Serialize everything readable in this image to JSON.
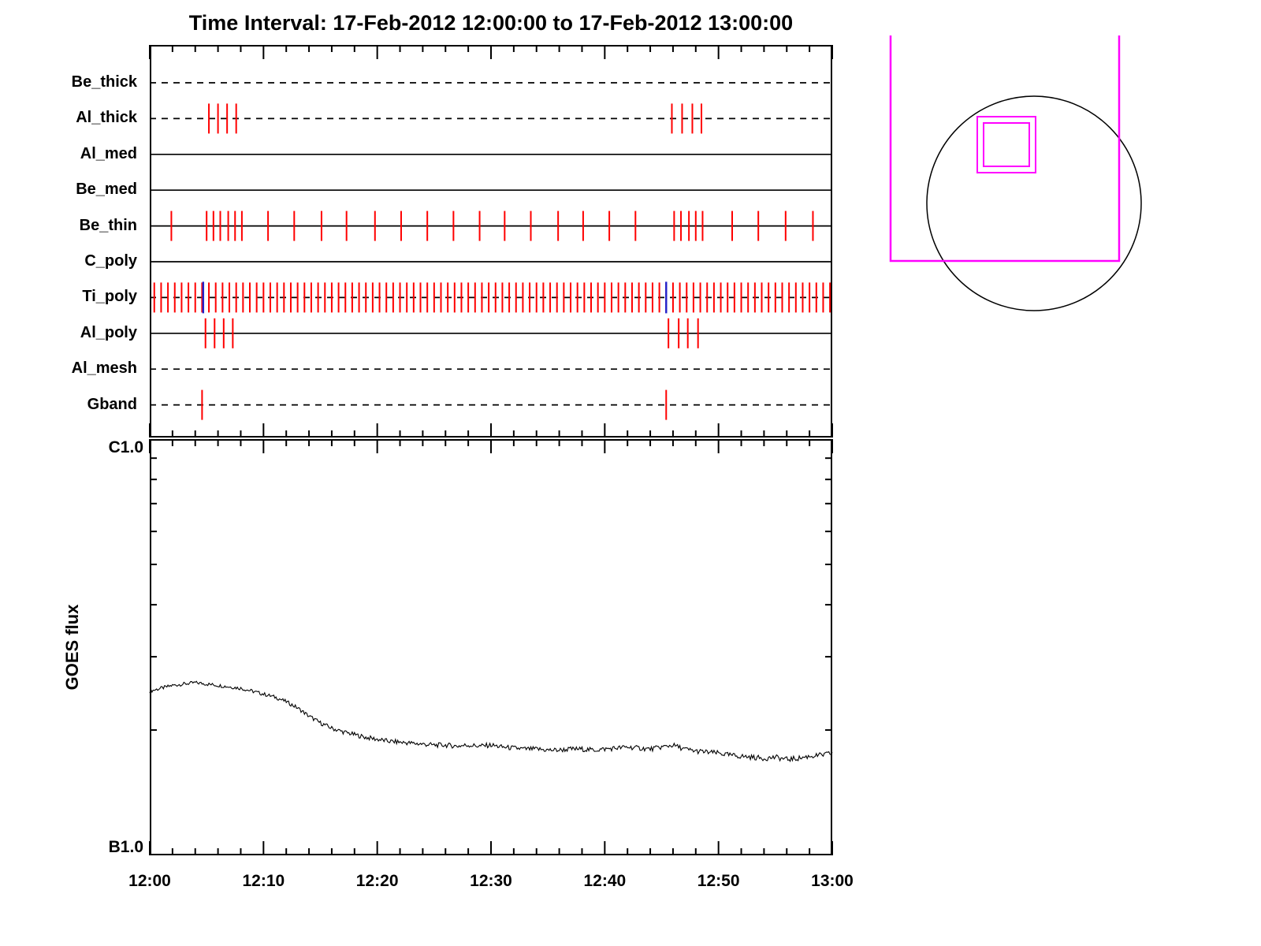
{
  "title": "Time Interval: 17-Feb-2012 12:00:00 to 17-Feb-2012 13:00:00",
  "colors": {
    "axis": "#000000",
    "exposure_tick": "#ff0000",
    "special_tick": "#2222cc",
    "fov": "#ff00ff",
    "background": "#ffffff"
  },
  "chart_data": [
    {
      "type": "timeline",
      "name": "xrt-filter-exposure-timeline",
      "x_minutes_range": [
        0,
        60
      ],
      "x_start_label": "12:00",
      "x_end_label": "13:00",
      "x_major_tick_minutes": 10,
      "x_minor_tick_minutes": 2,
      "rows": [
        {
          "label": "Be_thick",
          "line_style": "dashed",
          "ticks": []
        },
        {
          "label": "Al_thick",
          "line_style": "dashed",
          "ticks": [
            5.2,
            6.0,
            6.8,
            7.6,
            45.9,
            46.8,
            47.7,
            48.5
          ]
        },
        {
          "label": "Al_med",
          "line_style": "solid",
          "ticks": []
        },
        {
          "label": "Be_med",
          "line_style": "solid",
          "ticks": []
        },
        {
          "label": "Be_thin",
          "line_style": "solid",
          "ticks": [
            1.9,
            5.0,
            5.6,
            6.2,
            6.9,
            7.5,
            8.1,
            10.4,
            12.7,
            15.1,
            17.3,
            19.8,
            22.1,
            24.4,
            26.7,
            29.0,
            31.2,
            33.5,
            35.9,
            38.1,
            40.4,
            42.7,
            46.1,
            46.7,
            47.4,
            48.0,
            48.6,
            51.2,
            53.5,
            55.9,
            58.3
          ]
        },
        {
          "label": "C_poly",
          "line_style": "solid",
          "ticks": []
        },
        {
          "label": "Ti_poly",
          "line_style": "dashed",
          "ticks": [
            0.4,
            1.0,
            1.6,
            2.2,
            2.8,
            3.4,
            4.0,
            4.6,
            5.2,
            5.8,
            6.4,
            7.0,
            7.6,
            8.2,
            8.8,
            9.4,
            10.0,
            10.6,
            11.2,
            11.8,
            12.4,
            13.0,
            13.6,
            14.2,
            14.8,
            15.4,
            16.0,
            16.6,
            17.2,
            17.8,
            18.4,
            19.0,
            19.6,
            20.2,
            20.8,
            21.4,
            22.0,
            22.6,
            23.2,
            23.8,
            24.4,
            25.0,
            25.6,
            26.2,
            26.8,
            27.4,
            28.0,
            28.6,
            29.2,
            29.8,
            30.4,
            31.0,
            31.6,
            32.2,
            32.8,
            33.4,
            34.0,
            34.6,
            35.2,
            35.8,
            36.4,
            37.0,
            37.6,
            38.2,
            38.8,
            39.4,
            40.0,
            40.6,
            41.2,
            41.8,
            42.4,
            43.0,
            43.6,
            44.2,
            44.8,
            45.4,
            46.0,
            46.6,
            47.2,
            47.8,
            48.4,
            49.0,
            49.6,
            50.2,
            50.8,
            51.4,
            52.0,
            52.6,
            53.2,
            53.8,
            54.4,
            55.0,
            55.6,
            56.2,
            56.8,
            57.4,
            58.0,
            58.6,
            59.2,
            59.8
          ],
          "special_ticks": [
            4.7,
            45.4
          ]
        },
        {
          "label": "Al_poly",
          "line_style": "solid",
          "ticks": [
            4.9,
            5.7,
            6.5,
            7.3,
            45.6,
            46.5,
            47.3,
            48.2
          ]
        },
        {
          "label": "Al_mesh",
          "line_style": "dashed",
          "ticks": []
        },
        {
          "label": "Gband",
          "line_style": "dashed",
          "ticks": [
            4.6,
            45.4
          ]
        }
      ]
    },
    {
      "type": "line",
      "name": "goes-flux",
      "ylabel": "GOES flux",
      "yaxis": {
        "scale": "log",
        "top_label": "C1.0",
        "bottom_label": "B1.0",
        "minor_tick_values_b_units": [
          2,
          3,
          4,
          5,
          6,
          7,
          8,
          9
        ]
      },
      "x_tick_labels": [
        "12:00",
        "12:10",
        "12:20",
        "12:30",
        "12:40",
        "12:50",
        "13:00"
      ],
      "x_minutes": [
        0,
        1,
        2,
        3,
        4,
        5,
        6,
        7,
        8,
        9,
        10,
        11,
        12,
        13,
        14,
        15,
        16,
        17,
        18,
        19,
        20,
        21,
        22,
        23,
        24,
        25,
        26,
        27,
        28,
        29,
        30,
        31,
        32,
        33,
        34,
        35,
        36,
        37,
        38,
        39,
        40,
        41,
        42,
        43,
        44,
        45,
        46,
        47,
        48,
        49,
        50,
        51,
        52,
        53,
        54,
        55,
        56,
        57,
        58,
        59,
        60
      ],
      "flux_b_units": [
        2.48,
        2.52,
        2.56,
        2.58,
        2.6,
        2.58,
        2.56,
        2.54,
        2.52,
        2.48,
        2.44,
        2.4,
        2.34,
        2.26,
        2.16,
        2.08,
        2.02,
        1.98,
        1.95,
        1.92,
        1.9,
        1.88,
        1.87,
        1.86,
        1.85,
        1.84,
        1.84,
        1.83,
        1.84,
        1.83,
        1.84,
        1.82,
        1.81,
        1.8,
        1.8,
        1.79,
        1.79,
        1.8,
        1.8,
        1.79,
        1.8,
        1.81,
        1.82,
        1.81,
        1.8,
        1.82,
        1.84,
        1.8,
        1.78,
        1.77,
        1.76,
        1.74,
        1.73,
        1.72,
        1.71,
        1.72,
        1.7,
        1.71,
        1.73,
        1.74,
        1.76
      ]
    }
  ],
  "inset": {
    "description": "field-of-view context over solar limb",
    "fov_color": "#ff00ff",
    "limb_color": "#000000",
    "elements": [
      {
        "name": "instrument-fov-outline",
        "shape": "open-top-rectangle"
      },
      {
        "name": "solar-limb",
        "shape": "circle"
      },
      {
        "name": "target-region-box",
        "shape": "double-square"
      }
    ]
  }
}
